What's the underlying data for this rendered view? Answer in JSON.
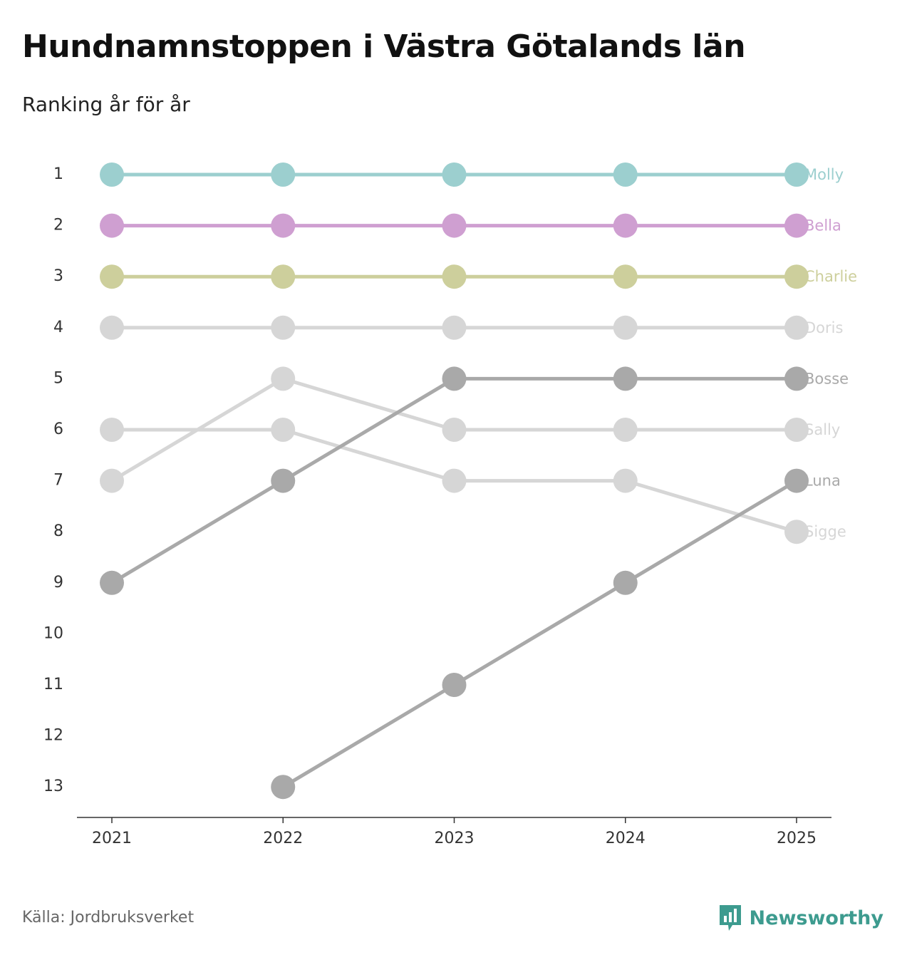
{
  "title": "Hundnamnstoppen i Västra Götalands län",
  "subtitle": "Ranking år för år",
  "source": "Källa: Jordbruksverket",
  "brand": {
    "name": "Newsworthy",
    "icon": "bar-chart-speech-bubble-icon",
    "color": "#3d9b8f"
  },
  "chart_data": {
    "type": "line",
    "title": "Hundnamnstoppen i Västra Götalands län",
    "subtitle": "Ranking år för år",
    "xlabel": "",
    "ylabel": "",
    "x": [
      "2021",
      "2022",
      "2023",
      "2024",
      "2025"
    ],
    "y_ticks": [
      1,
      2,
      3,
      4,
      5,
      6,
      7,
      8,
      9,
      10,
      11,
      12,
      13
    ],
    "ylim": [
      1,
      13
    ],
    "y_inverted": true,
    "grid": false,
    "legend": "direct labels at right end",
    "series": [
      {
        "name": "Molly",
        "values": [
          1,
          1,
          1,
          1,
          1
        ],
        "color": "#9ccfcf"
      },
      {
        "name": "Bella",
        "values": [
          2,
          2,
          2,
          2,
          2
        ],
        "color": "#cf9fd1"
      },
      {
        "name": "Charlie",
        "values": [
          3,
          3,
          3,
          3,
          3
        ],
        "color": "#cdcf9c"
      },
      {
        "name": "Doris",
        "values": [
          4,
          4,
          4,
          4,
          4
        ],
        "color": "#d6d6d6"
      },
      {
        "name": "Sally",
        "values": [
          7,
          5,
          6,
          6,
          6
        ],
        "color": "#d6d6d6"
      },
      {
        "name": "Sigge",
        "values": [
          6,
          6,
          7,
          7,
          8
        ],
        "color": "#d6d6d6"
      },
      {
        "name": "Bosse",
        "values": [
          9,
          7,
          5,
          5,
          5
        ],
        "color": "#a9a9a9"
      },
      {
        "name": "Luna",
        "values": [
          null,
          13,
          11,
          9,
          7
        ],
        "color": "#a9a9a9"
      }
    ]
  }
}
